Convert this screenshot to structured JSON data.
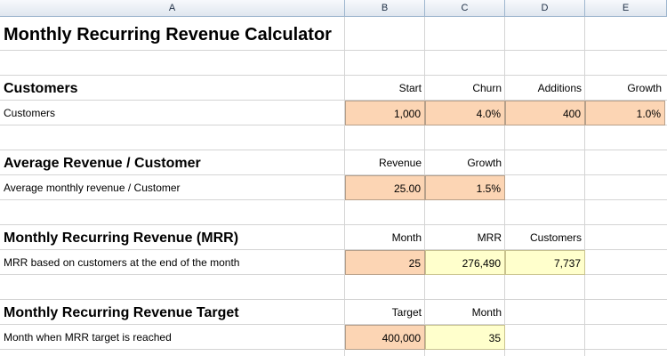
{
  "columns": [
    "A",
    "B",
    "C",
    "D",
    "E"
  ],
  "title": "Monthly Recurring Revenue Calculator",
  "customers": {
    "heading": "Customers",
    "headers": [
      "Start",
      "Churn",
      "Additions",
      "Growth"
    ],
    "label": "Customers",
    "values": [
      "1,000",
      "4.0%",
      "400",
      "1.0%"
    ]
  },
  "arpc": {
    "heading": "Average Revenue / Customer",
    "headers": [
      "Revenue",
      "Growth"
    ],
    "label": "Average monthly revenue / Customer",
    "values": [
      "25.00",
      "1.5%"
    ]
  },
  "mrr": {
    "heading": "Monthly Recurring Revenue (MRR)",
    "headers": [
      "Month",
      "MRR",
      "Customers"
    ],
    "label": "MRR based on customers at the end of the month",
    "values": [
      "25",
      "276,490",
      "7,737"
    ]
  },
  "target": {
    "heading": "Monthly Recurring Revenue Target",
    "headers": [
      "Target",
      "Month"
    ],
    "label": "Month when MRR target is reached",
    "values": [
      "400,000",
      "35"
    ]
  },
  "colors": {
    "input_fill": "#fcd5b4",
    "output_fill": "#ffffcc",
    "header_fill": "#dfe6ef"
  }
}
